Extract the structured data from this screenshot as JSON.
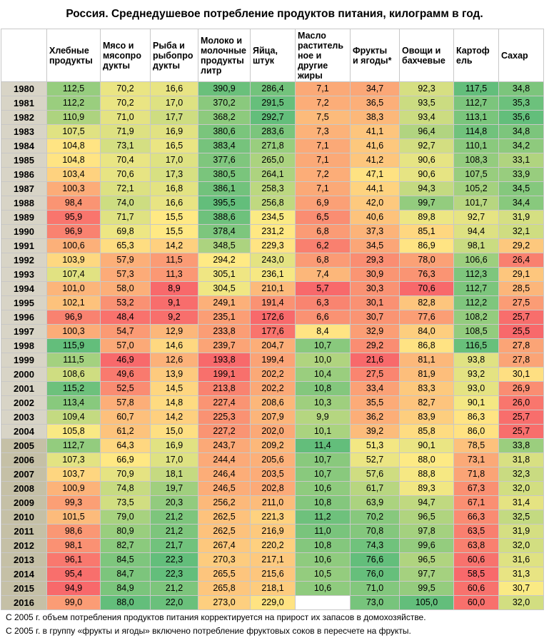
{
  "title": "Россия. Среднедушевое потребление продуктов питания, килограмм в год.",
  "chart_data": {
    "type": "table",
    "columns": [
      "Хлебные\nпродукты",
      "Мясо и\nмясопро\nдукты",
      "Рыба и\nрыбопро\nдукты",
      "Молоко и\nмолочные\nпродукты\nлитр",
      "Яйца,\nштук",
      "Масло\nраститель\nное и\nдругие\nжиры",
      "Фрукты\nи ягоды*",
      "Овощи и\nбахчевые",
      "Картоф\nель",
      "Сахар"
    ],
    "rows": [
      {
        "year": "1980",
        "values": [
          "112,5",
          "70,2",
          "16,6",
          "390,9",
          "286,4",
          "7,1",
          "34,7",
          "92,3",
          "117,5",
          "34,8"
        ]
      },
      {
        "year": "1981",
        "values": [
          "112,2",
          "70,2",
          "17,0",
          "370,2",
          "291,5",
          "7,2",
          "36,5",
          "93,5",
          "112,7",
          "35,3"
        ]
      },
      {
        "year": "1982",
        "values": [
          "110,9",
          "71,0",
          "17,7",
          "368,2",
          "292,7",
          "7,5",
          "38,3",
          "93,4",
          "113,1",
          "35,6"
        ]
      },
      {
        "year": "1983",
        "values": [
          "107,5",
          "71,9",
          "16,9",
          "380,6",
          "283,6",
          "7,3",
          "41,1",
          "96,4",
          "114,8",
          "34,8"
        ]
      },
      {
        "year": "1984",
        "values": [
          "104,8",
          "73,1",
          "16,5",
          "383,4",
          "271,8",
          "7,1",
          "41,6",
          "92,7",
          "110,1",
          "34,2"
        ]
      },
      {
        "year": "1985",
        "values": [
          "104,8",
          "70,4",
          "17,0",
          "377,6",
          "265,0",
          "7,1",
          "41,2",
          "90,6",
          "108,3",
          "33,1"
        ]
      },
      {
        "year": "1986",
        "values": [
          "103,4",
          "70,6",
          "17,3",
          "380,5",
          "264,1",
          "7,2",
          "47,1",
          "90,6",
          "107,5",
          "33,9"
        ]
      },
      {
        "year": "1987",
        "values": [
          "100,3",
          "72,1",
          "16,8",
          "386,1",
          "258,3",
          "7,1",
          "44,1",
          "94,3",
          "105,2",
          "34,5"
        ]
      },
      {
        "year": "1988",
        "values": [
          "98,4",
          "74,0",
          "16,6",
          "395,5",
          "256,8",
          "6,9",
          "42,0",
          "99,7",
          "101,7",
          "34,4"
        ]
      },
      {
        "year": "1989",
        "values": [
          "95,9",
          "71,7",
          "15,5",
          "388,6",
          "234,5",
          "6,5",
          "40,6",
          "89,8",
          "92,7",
          "31,9"
        ]
      },
      {
        "year": "1990",
        "values": [
          "96,9",
          "69,8",
          "15,5",
          "378,4",
          "231,2",
          "6,8",
          "37,3",
          "85,1",
          "94,4",
          "32,1"
        ]
      },
      {
        "year": "1991",
        "values": [
          "100,6",
          "65,3",
          "14,2",
          "348,5",
          "229,3",
          "6,2",
          "34,5",
          "86,9",
          "98,1",
          "29,2"
        ]
      },
      {
        "year": "1992",
        "values": [
          "103,9",
          "57,9",
          "11,5",
          "294,2",
          "243,0",
          "6,8",
          "29,3",
          "78,0",
          "106,6",
          "26,4"
        ]
      },
      {
        "year": "1993",
        "values": [
          "107,4",
          "57,3",
          "11,3",
          "305,1",
          "236,1",
          "7,4",
          "30,9",
          "76,3",
          "112,3",
          "29,1"
        ]
      },
      {
        "year": "1994",
        "values": [
          "101,0",
          "58,0",
          "8,9",
          "304,5",
          "210,1",
          "5,7",
          "30,3",
          "70,6",
          "112,7",
          "28,5"
        ]
      },
      {
        "year": "1995",
        "values": [
          "102,1",
          "53,2",
          "9,1",
          "249,1",
          "191,4",
          "6,3",
          "30,1",
          "82,8",
          "112,2",
          "27,5"
        ]
      },
      {
        "year": "1996",
        "values": [
          "96,9",
          "48,4",
          "9,2",
          "235,1",
          "172,6",
          "6,6",
          "30,7",
          "77,6",
          "108,2",
          "25,7"
        ]
      },
      {
        "year": "1997",
        "values": [
          "100,3",
          "54,7",
          "12,9",
          "233,8",
          "177,6",
          "8,4",
          "32,9",
          "84,0",
          "108,5",
          "25,5"
        ]
      },
      {
        "year": "1998",
        "values": [
          "115,9",
          "57,0",
          "14,6",
          "239,7",
          "204,7",
          "10,7",
          "29,2",
          "86,8",
          "116,5",
          "27,8"
        ]
      },
      {
        "year": "1999",
        "values": [
          "111,5",
          "46,9",
          "12,6",
          "193,8",
          "199,4",
          "10,0",
          "21,6",
          "81,1",
          "93,8",
          "27,8"
        ]
      },
      {
        "year": "2000",
        "values": [
          "108,6",
          "49,6",
          "13,9",
          "199,1",
          "202,2",
          "10,4",
          "27,5",
          "81,9",
          "93,2",
          "30,1"
        ]
      },
      {
        "year": "2001",
        "values": [
          "115,2",
          "52,5",
          "14,5",
          "213,8",
          "202,2",
          "10,8",
          "33,4",
          "83,3",
          "93,0",
          "26,9"
        ]
      },
      {
        "year": "2002",
        "values": [
          "113,4",
          "57,8",
          "14,8",
          "227,4",
          "208,6",
          "10,3",
          "35,5",
          "82,7",
          "90,1",
          "26,0"
        ]
      },
      {
        "year": "2003",
        "values": [
          "109,4",
          "60,7",
          "14,2",
          "225,3",
          "207,9",
          "9,9",
          "36,2",
          "83,9",
          "86,3",
          "25,7"
        ]
      },
      {
        "year": "2004",
        "values": [
          "105,8",
          "61,2",
          "15,0",
          "227,2",
          "202,0",
          "10,1",
          "39,2",
          "85,8",
          "86,0",
          "25,7"
        ]
      },
      {
        "year": "2005",
        "values": [
          "112,7",
          "64,3",
          "16,9",
          "243,7",
          "209,2",
          "11,4",
          "51,3",
          "90,1",
          "78,5",
          "33,8"
        ]
      },
      {
        "year": "2006",
        "values": [
          "107,3",
          "66,9",
          "17,0",
          "244,4",
          "205,6",
          "10,7",
          "52,7",
          "88,0",
          "73,1",
          "31,8"
        ]
      },
      {
        "year": "2007",
        "values": [
          "103,7",
          "70,9",
          "18,1",
          "246,4",
          "203,5",
          "10,7",
          "57,6",
          "88,8",
          "71,8",
          "32,3"
        ]
      },
      {
        "year": "2008",
        "values": [
          "100,9",
          "74,8",
          "19,7",
          "246,5",
          "202,8",
          "10,6",
          "61,7",
          "89,3",
          "67,3",
          "32,0"
        ]
      },
      {
        "year": "2009",
        "values": [
          "99,3",
          "73,5",
          "20,3",
          "256,2",
          "211,0",
          "10,8",
          "63,9",
          "94,7",
          "67,1",
          "31,4"
        ]
      },
      {
        "year": "2010",
        "values": [
          "101,5",
          "79,0",
          "21,2",
          "262,5",
          "221,3",
          "11,2",
          "70,2",
          "96,5",
          "66,3",
          "32,5"
        ]
      },
      {
        "year": "2011",
        "values": [
          "98,6",
          "80,9",
          "21,2",
          "262,5",
          "216,9",
          "11,0",
          "70,8",
          "97,8",
          "63,5",
          "31,9"
        ]
      },
      {
        "year": "2012",
        "values": [
          "98,1",
          "82,7",
          "21,7",
          "267,4",
          "220,2",
          "10,8",
          "74,3",
          "99,6",
          "63,8",
          "32,0"
        ]
      },
      {
        "year": "2013",
        "values": [
          "96,1",
          "84,5",
          "22,3",
          "270,3",
          "217,1",
          "10,6",
          "76,6",
          "96,5",
          "60,6",
          "31,6"
        ]
      },
      {
        "year": "2014",
        "values": [
          "95,4",
          "84,7",
          "22,3",
          "265,5",
          "215,6",
          "10,5",
          "76,0",
          "97,7",
          "58,5",
          "31,3"
        ]
      },
      {
        "year": "2015",
        "values": [
          "94,9",
          "84,9",
          "21,2",
          "265,8",
          "218,1",
          "10,6",
          "71,0",
          "99,5",
          "60,6",
          "30,7"
        ]
      },
      {
        "year": "2016",
        "values": [
          "99,0",
          "88,0",
          "22,0",
          "273,0",
          "229,0",
          "",
          "73,0",
          "105,0",
          "60,0",
          "32,0"
        ]
      }
    ],
    "color_scale": {
      "low": "#f8696b",
      "mid": "#ffeb84",
      "high": "#63be7b"
    }
  },
  "notes": [
    "С 2005 г. объем потребления продуктов питания корректируется на прирост их запасов в домохозяйстве.",
    "С 2005 г. в группу «фрукты и ягоды» включено потребление фруктовых соков в пересчете на фрукты."
  ]
}
